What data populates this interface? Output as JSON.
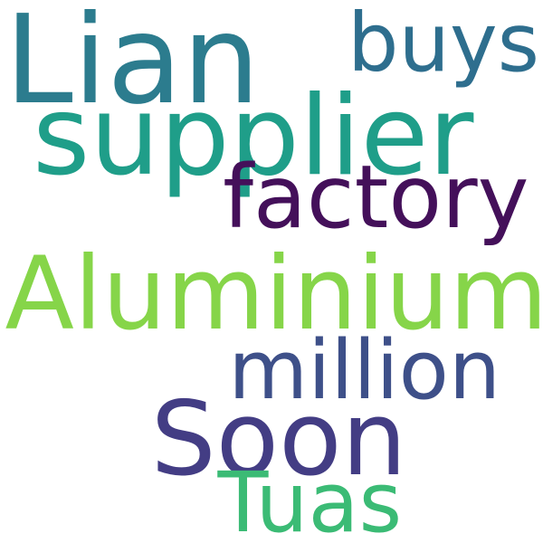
{
  "words": [
    {
      "id": "lian",
      "text": "Lian",
      "color": "#2c7c8e"
    },
    {
      "id": "buys",
      "text": "buys",
      "color": "#2e6e8e"
    },
    {
      "id": "supplier",
      "text": "supplier",
      "color": "#1f9e89"
    },
    {
      "id": "factory",
      "text": "factory",
      "color": "#44105a"
    },
    {
      "id": "aluminium",
      "text": "Aluminium",
      "color": "#86d549"
    },
    {
      "id": "million",
      "text": "million",
      "color": "#3e5089"
    },
    {
      "id": "soon",
      "text": "Soon",
      "color": "#433d84"
    },
    {
      "id": "tuas",
      "text": "Tuas",
      "color": "#3bbb75"
    }
  ]
}
